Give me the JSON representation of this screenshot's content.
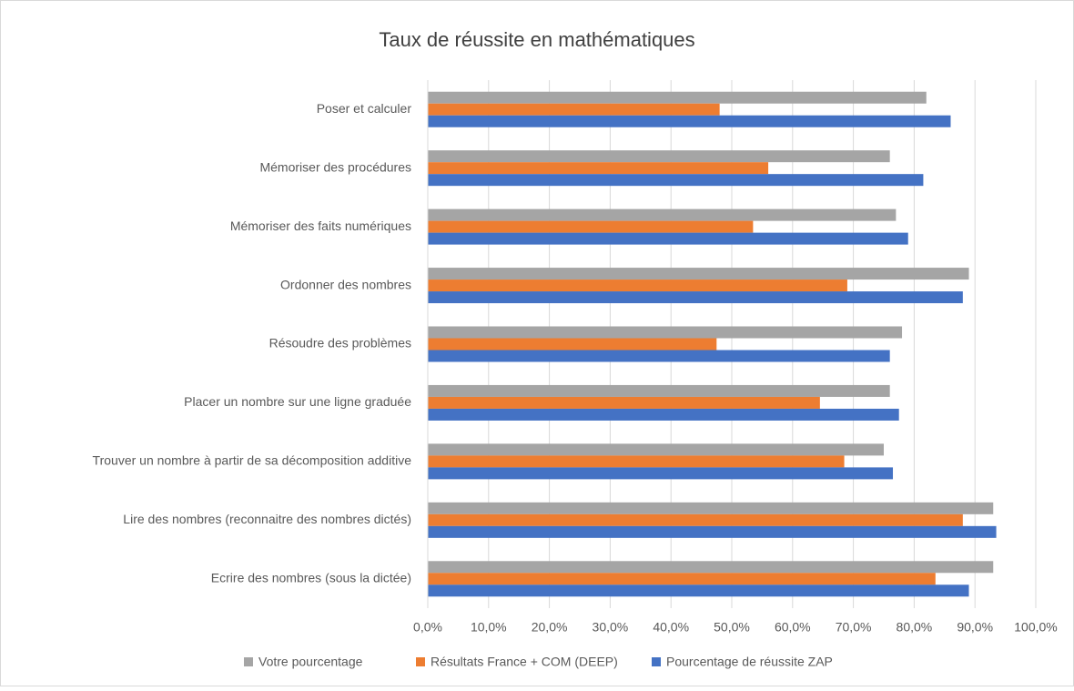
{
  "chart_data": {
    "type": "hbar",
    "title": "Taux de réussite en mathématiques",
    "categories": [
      "Poser et calculer",
      "Mémoriser des procédures",
      "Mémoriser des faits numériques",
      "Ordonner des nombres",
      "Résoudre des problèmes",
      "Placer un nombre sur une ligne graduée",
      "Trouver un nombre à partir de sa décomposition additive",
      "Lire des nombres (reconnaitre des nombres dictés)",
      "Ecrire des nombres (sous la dictée)"
    ],
    "series": [
      {
        "name": "Votre pourcentage",
        "color": "#a5a5a5",
        "values": [
          82,
          76,
          77,
          89,
          78,
          76,
          75,
          93,
          93
        ]
      },
      {
        "name": "Résultats France + COM (DEEP)",
        "color": "#ed7d31",
        "values": [
          48,
          56,
          53.5,
          69,
          47.5,
          64.5,
          68.5,
          88,
          83.5
        ]
      },
      {
        "name": "Pourcentage de réussite ZAP",
        "color": "#4472c4",
        "values": [
          86,
          81.5,
          79,
          88,
          76,
          77.5,
          76.5,
          93.5,
          89
        ]
      }
    ],
    "xlim": [
      0,
      100
    ],
    "xticks": [
      {
        "value": 0,
        "label": "0,0%"
      },
      {
        "value": 10,
        "label": "10,0%"
      },
      {
        "value": 20,
        "label": "20,0%"
      },
      {
        "value": 30,
        "label": "30,0%"
      },
      {
        "value": 40,
        "label": "40,0%"
      },
      {
        "value": 50,
        "label": "50,0%"
      },
      {
        "value": 60,
        "label": "60,0%"
      },
      {
        "value": 70,
        "label": "70,0%"
      },
      {
        "value": 80,
        "label": "80,0%"
      },
      {
        "value": 90,
        "label": "90,0%"
      },
      {
        "value": 100,
        "label": "100,0%"
      }
    ],
    "grid": true,
    "legend": "bottom"
  }
}
